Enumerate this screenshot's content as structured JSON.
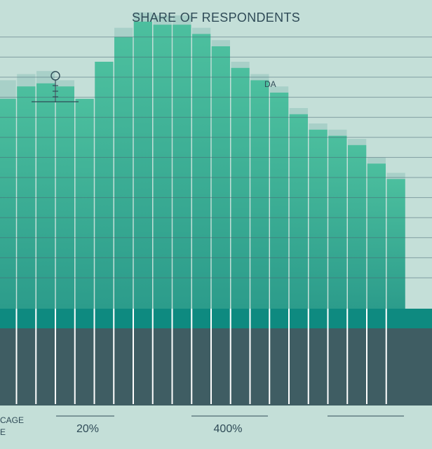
{
  "chart_data": {
    "type": "bar",
    "title": "SHARE OF RESPONDENTS",
    "annotation": "DA",
    "axis_caption": [
      "CAGE",
      "E"
    ],
    "x_labels": [
      "20%",
      "400%"
    ],
    "values": [
      68,
      72,
      73,
      72,
      68,
      80,
      88,
      93,
      92,
      92,
      89,
      85,
      78,
      74,
      70,
      63,
      58,
      56,
      53,
      47,
      42
    ],
    "caps": [
      74,
      76,
      77,
      74,
      0,
      0,
      91,
      96,
      95,
      95,
      91,
      87,
      80,
      76,
      72,
      65,
      60,
      58,
      55,
      49,
      44
    ],
    "ylim": [
      0,
      100
    ],
    "grid": true,
    "colors": {
      "background": "#c4dfd8",
      "bar_top": "#43b596",
      "bar_bottom": "#2e9e8c",
      "bar_cap": "#a8d0c8",
      "band": "#0e8a80",
      "base": "#3f5d63",
      "grid": "#4a6877",
      "divider": "#ffffff"
    }
  }
}
